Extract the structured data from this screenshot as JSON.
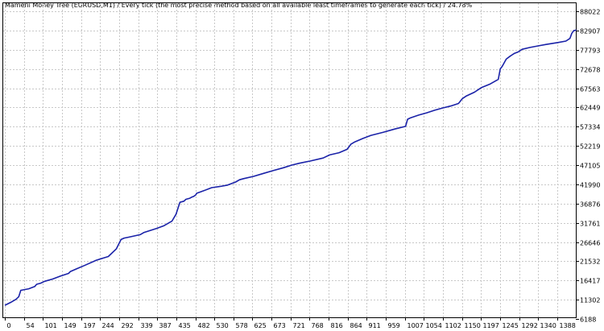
{
  "chart_data": {
    "type": "line",
    "title": "Mameni Money Tree (EURUSD,M1) / Every tick (the most precise method based on all available least timeframes to generate each tick) / 24.78%",
    "xlabel": "",
    "ylabel": "",
    "x_ticks": [
      "0",
      "54",
      "101",
      "149",
      "197",
      "244",
      "292",
      "339",
      "387",
      "435",
      "482",
      "530",
      "578",
      "625",
      "673",
      "721",
      "768",
      "816",
      "864",
      "911",
      "959",
      "1007",
      "1054",
      "1102",
      "1150",
      "1197",
      "1245",
      "1292",
      "1340",
      "1388"
    ],
    "y_ticks": [
      "88022",
      "82907",
      "77793",
      "72678",
      "67563",
      "62449",
      "57334",
      "52219",
      "47105",
      "41990",
      "36876",
      "31761",
      "26646",
      "21532",
      "16417",
      "11302",
      "6188"
    ],
    "xlim": [
      0,
      1440
    ],
    "ylim": [
      6188,
      88022
    ],
    "grid": true,
    "colors": {
      "series": "#1a22a8",
      "grid": "#c8c8c8",
      "axis": "#000000"
    },
    "series": [
      {
        "x": [
          0,
          15,
          28,
          35,
          40,
          60,
          75,
          80,
          90,
          100,
          120,
          140,
          160,
          165,
          180,
          200,
          230,
          260,
          280,
          292,
          300,
          310,
          340,
          350,
          380,
          400,
          420,
          430,
          440,
          450,
          455,
          465,
          470,
          475,
          480,
          482,
          500,
          520,
          540,
          560,
          580,
          590,
          600,
          625,
          650,
          673,
          700,
          721,
          740,
          768,
          800,
          816,
          840,
          860,
          870,
          880,
          900,
          920,
          950,
          980,
          1007,
          1012,
          1020,
          1040,
          1060,
          1080,
          1100,
          1120,
          1140,
          1150,
          1160,
          1180,
          1197,
          1220,
          1240,
          1245,
          1250,
          1260,
          1270,
          1280,
          1290,
          1300,
          1320,
          1340,
          1360,
          1390,
          1410,
          1420,
          1425,
          1430,
          1436
        ],
        "y": [
          9800,
          10600,
          11400,
          12100,
          13800,
          14200,
          14800,
          15400,
          15700,
          16200,
          16800,
          17600,
          18300,
          18800,
          19500,
          20400,
          21800,
          22800,
          24800,
          27300,
          27700,
          27900,
          28600,
          29200,
          30200,
          31000,
          32200,
          34000,
          37200,
          37500,
          38000,
          38300,
          38600,
          38800,
          39200,
          39600,
          40300,
          41100,
          41400,
          41800,
          42600,
          43200,
          43500,
          44100,
          44900,
          45600,
          46400,
          47100,
          47600,
          48200,
          49000,
          49800,
          50400,
          51300,
          52700,
          53300,
          54200,
          55000,
          55800,
          56700,
          57400,
          59300,
          59700,
          60400,
          61000,
          61700,
          62300,
          62800,
          63500,
          64800,
          65500,
          66500,
          67700,
          68700,
          69900,
          72700,
          73400,
          75300,
          76100,
          76800,
          77200,
          77900,
          78400,
          78800,
          79200,
          79700,
          80100,
          80800,
          82200,
          82900,
          83000
        ]
      }
    ]
  }
}
